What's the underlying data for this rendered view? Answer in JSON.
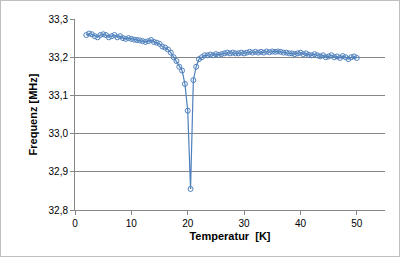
{
  "chart_data": {
    "type": "line",
    "marker": "circle-open",
    "color": "#4f81bd",
    "grid": true,
    "x_label": "Temperatur  [K]",
    "y_label": "Frequenz [MHz]",
    "x": [
      2.0,
      2.5,
      3.0,
      3.5,
      4.0,
      4.5,
      5.0,
      5.5,
      6.0,
      6.5,
      7.0,
      7.5,
      8.0,
      8.5,
      9.0,
      9.5,
      10.0,
      10.5,
      11.0,
      11.5,
      12.0,
      12.5,
      13.0,
      13.5,
      14.0,
      14.5,
      15.0,
      15.5,
      16.0,
      16.5,
      17.0,
      17.5,
      18.0,
      18.5,
      19.0,
      19.5,
      20.0,
      20.5,
      21.0,
      21.5,
      22.0,
      22.5,
      23.0,
      23.5,
      24.0,
      24.5,
      25.0,
      25.5,
      26.0,
      26.5,
      27.0,
      27.5,
      28.0,
      28.5,
      29.0,
      29.5,
      30.0,
      30.5,
      31.0,
      31.5,
      32.0,
      32.5,
      33.0,
      33.5,
      34.0,
      34.5,
      35.0,
      35.5,
      36.0,
      36.5,
      37.0,
      37.5,
      38.0,
      38.5,
      39.0,
      39.5,
      40.0,
      40.5,
      41.0,
      41.5,
      42.0,
      42.5,
      43.0,
      43.5,
      44.0,
      44.5,
      45.0,
      45.5,
      46.0,
      46.5,
      47.0,
      47.5,
      48.0,
      48.5,
      49.0,
      49.5,
      50.0
    ],
    "values": [
      33.258,
      33.262,
      33.26,
      33.255,
      33.252,
      33.258,
      33.26,
      33.258,
      33.252,
      33.255,
      33.258,
      33.252,
      33.255,
      33.25,
      33.248,
      33.25,
      33.248,
      33.246,
      33.245,
      33.244,
      33.242,
      33.24,
      33.242,
      33.245,
      33.24,
      33.238,
      33.235,
      33.228,
      33.225,
      33.22,
      33.212,
      33.2,
      33.19,
      33.175,
      33.165,
      33.13,
      33.06,
      32.855,
      33.14,
      33.175,
      33.195,
      33.2,
      33.205,
      33.205,
      33.207,
      33.205,
      33.208,
      33.206,
      33.208,
      33.21,
      33.212,
      33.21,
      33.212,
      33.21,
      33.21,
      33.212,
      33.21,
      33.212,
      33.214,
      33.212,
      33.214,
      33.212,
      33.214,
      33.212,
      33.215,
      33.213,
      33.215,
      33.214,
      33.215,
      33.214,
      33.212,
      33.212,
      33.21,
      33.21,
      33.208,
      33.21,
      33.212,
      33.208,
      33.21,
      33.206,
      33.205,
      33.208,
      33.205,
      33.202,
      33.205,
      33.2,
      33.202,
      33.205,
      33.2,
      33.202,
      33.198,
      33.203,
      33.2,
      33.195,
      33.2,
      33.202,
      33.198
    ],
    "xlim": [
      0,
      55
    ],
    "xticks": [
      0,
      10,
      20,
      30,
      40,
      50
    ],
    "ylim": [
      32.8,
      33.3
    ],
    "yticks": [
      {
        "value": 32.8,
        "label": "32,8"
      },
      {
        "value": 32.9,
        "label": "32,9"
      },
      {
        "value": 33.0,
        "label": "33,0"
      },
      {
        "value": 33.1,
        "label": "33,1"
      },
      {
        "value": 33.2,
        "label": "33,2"
      },
      {
        "value": 33.3,
        "label": "33,3"
      }
    ]
  }
}
